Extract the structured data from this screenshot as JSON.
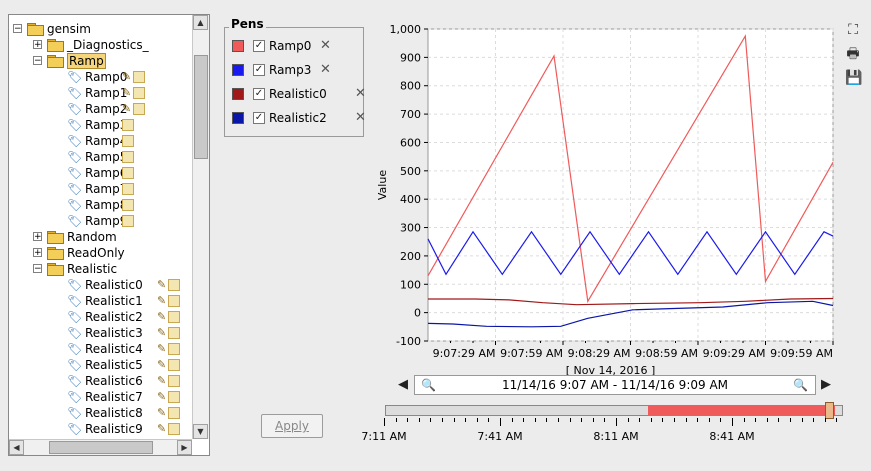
{
  "tree": {
    "items": [
      {
        "label": "gensim",
        "kind": "folder",
        "expander": "−",
        "level": 0
      },
      {
        "label": "_Diagnostics_",
        "kind": "folder",
        "expander": "+",
        "level": 1
      },
      {
        "label": "Ramp",
        "kind": "folder",
        "expander": "−",
        "level": 1,
        "selected": true
      },
      {
        "label": "Ramp0",
        "kind": "tag",
        "level": 2,
        "pen": true
      },
      {
        "label": "Ramp1",
        "kind": "tag",
        "level": 2,
        "pen": true
      },
      {
        "label": "Ramp2",
        "kind": "tag",
        "level": 2,
        "pen": true
      },
      {
        "label": "Ramp3",
        "kind": "tag",
        "level": 2,
        "pen": false
      },
      {
        "label": "Ramp4",
        "kind": "tag",
        "level": 2,
        "pen": false
      },
      {
        "label": "Ramp5",
        "kind": "tag",
        "level": 2,
        "pen": false
      },
      {
        "label": "Ramp6",
        "kind": "tag",
        "level": 2,
        "pen": false
      },
      {
        "label": "Ramp7",
        "kind": "tag",
        "level": 2,
        "pen": false
      },
      {
        "label": "Ramp8",
        "kind": "tag",
        "level": 2,
        "pen": false
      },
      {
        "label": "Ramp9",
        "kind": "tag",
        "level": 2,
        "pen": false
      },
      {
        "label": "Random",
        "kind": "folder",
        "expander": "+",
        "level": 1
      },
      {
        "label": "ReadOnly",
        "kind": "folder",
        "expander": "+",
        "level": 1
      },
      {
        "label": "Realistic",
        "kind": "folder",
        "expander": "−",
        "level": 1
      },
      {
        "label": "Realistic0",
        "kind": "tag",
        "level": 2,
        "pen": true
      },
      {
        "label": "Realistic1",
        "kind": "tag",
        "level": 2,
        "pen": true
      },
      {
        "label": "Realistic2",
        "kind": "tag",
        "level": 2,
        "pen": true
      },
      {
        "label": "Realistic3",
        "kind": "tag",
        "level": 2,
        "pen": true
      },
      {
        "label": "Realistic4",
        "kind": "tag",
        "level": 2,
        "pen": true
      },
      {
        "label": "Realistic5",
        "kind": "tag",
        "level": 2,
        "pen": true
      },
      {
        "label": "Realistic6",
        "kind": "tag",
        "level": 2,
        "pen": true
      },
      {
        "label": "Realistic7",
        "kind": "tag",
        "level": 2,
        "pen": true
      },
      {
        "label": "Realistic8",
        "kind": "tag",
        "level": 2,
        "pen": true
      },
      {
        "label": "Realistic9",
        "kind": "tag",
        "level": 2,
        "pen": true
      }
    ]
  },
  "pens": {
    "title": "Pens",
    "items": [
      {
        "label": "Ramp0",
        "color": "#f05a5a",
        "checked": true
      },
      {
        "label": "Ramp3",
        "color": "#1a1aee",
        "checked": true
      },
      {
        "label": "Realistic0",
        "color": "#a01818",
        "checked": true
      },
      {
        "label": "Realistic2",
        "color": "#0a16a8",
        "checked": true
      }
    ],
    "remove_icon": "close-icon"
  },
  "apply_label": "Apply",
  "side_icons": [
    "fit-icon",
    "print-icon",
    "save-icon"
  ],
  "range": {
    "text": "11/14/16 9:07 AM - 11/14/16 9:09 AM",
    "zoom_out_icon": "zoom-out-icon",
    "zoom_in_icon": "zoom-in-icon"
  },
  "timeline": {
    "labels": [
      "7:11 AM",
      "7:41 AM",
      "8:11 AM",
      "8:41 AM"
    ],
    "selected_fraction": [
      0.575,
      0.985
    ]
  },
  "chart_data": {
    "type": "line",
    "ylabel": "Value",
    "xlabel": "[ Nov 14, 2016 ]",
    "ylim": [
      -100,
      1000
    ],
    "yticks": [
      "-100",
      "0",
      "100",
      "200",
      "300",
      "400",
      "500",
      "600",
      "700",
      "800",
      "900",
      "1,000"
    ],
    "xlim": [
      "9:06:59 AM",
      "9:09:59 AM"
    ],
    "xticks": [
      "9:07:29 AM",
      "9:07:59 AM",
      "9:08:29 AM",
      "9:08:59 AM",
      "9:09:29 AM",
      "9:09:59 AM"
    ],
    "grid": true,
    "series": [
      {
        "name": "Ramp0",
        "color": "#f05a5a",
        "x": [
          "9:06:59",
          "9:07:55",
          "9:08:10",
          "9:09:20",
          "9:09:29",
          "9:09:59"
        ],
        "values": [
          130,
          905,
          40,
          975,
          110,
          530
        ]
      },
      {
        "name": "Ramp3",
        "color": "#1a1aee",
        "x": [
          "9:06:59",
          "9:07:07",
          "9:07:19",
          "9:07:32",
          "9:07:45",
          "9:07:58",
          "9:08:11",
          "9:08:24",
          "9:08:37",
          "9:08:50",
          "9:09:03",
          "9:09:16",
          "9:09:29",
          "9:09:42",
          "9:09:55",
          "9:09:59"
        ],
        "values": [
          260,
          135,
          285,
          135,
          285,
          135,
          285,
          135,
          285,
          135,
          285,
          135,
          285,
          135,
          285,
          270
        ]
      },
      {
        "name": "Realistic0",
        "color": "#a01818",
        "x": [
          "9:06:59",
          "9:07:20",
          "9:07:35",
          "9:07:50",
          "9:08:05",
          "9:08:30",
          "9:09:00",
          "9:09:20",
          "9:09:40",
          "9:09:59"
        ],
        "values": [
          48,
          48,
          45,
          35,
          28,
          32,
          35,
          40,
          48,
          50
        ]
      },
      {
        "name": "Realistic2",
        "color": "#0a16a8",
        "x": [
          "9:06:59",
          "9:07:10",
          "9:07:25",
          "9:07:45",
          "9:07:58",
          "9:08:10",
          "9:08:30",
          "9:08:50",
          "9:09:10",
          "9:09:30",
          "9:09:50",
          "9:09:59"
        ],
        "values": [
          -38,
          -40,
          -48,
          -50,
          -48,
          -20,
          10,
          15,
          20,
          35,
          40,
          25
        ]
      }
    ]
  }
}
